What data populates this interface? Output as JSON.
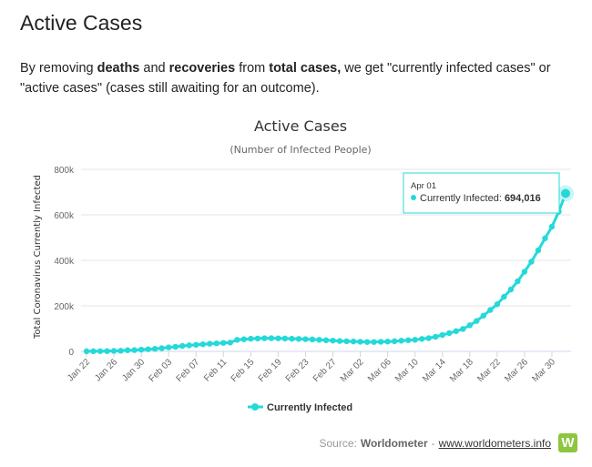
{
  "page": {
    "title": "Active Cases",
    "intro": {
      "p1": "By removing ",
      "b1": "deaths",
      "p2": " and ",
      "b2": "recoveries",
      "p3": " from ",
      "b3": "total cases,",
      "p4": " we get \"currently infected cases\" or \"active cases\" (cases still awaiting for an outcome)."
    }
  },
  "tooltip": {
    "date": "Apr 01",
    "label": "Currently Infected: ",
    "value": "694,016"
  },
  "source": {
    "label": "Source:",
    "name": "Worldometer",
    "separator": "-",
    "link": "www.worldometers.info",
    "logo_letter": "W"
  },
  "colors": {
    "series": "#25d9d9",
    "tooltip_border": "#25d9d9"
  },
  "chart_data": {
    "type": "line",
    "title": "Active Cases",
    "subtitle": "(Number of Infected People)",
    "ylabel": "Total Coronavirus Currently Infected",
    "xlabel": "",
    "ylim": [
      0,
      800000
    ],
    "yticks": [
      0,
      200000,
      400000,
      600000,
      800000
    ],
    "ytick_labels": [
      "0",
      "200k",
      "400k",
      "600k",
      "800k"
    ],
    "grid": true,
    "legend_position": "bottom-center",
    "x_tick_labels": [
      "Jan 22",
      "Jan 26",
      "Jan 30",
      "Feb 03",
      "Feb 07",
      "Feb 11",
      "Feb 15",
      "Feb 19",
      "Feb 23",
      "Feb 27",
      "Mar 02",
      "Mar 06",
      "Mar 10",
      "Mar 14",
      "Mar 18",
      "Mar 22",
      "Mar 26",
      "Mar 30"
    ],
    "x": [
      "Jan 22",
      "Jan 23",
      "Jan 24",
      "Jan 25",
      "Jan 26",
      "Jan 27",
      "Jan 28",
      "Jan 29",
      "Jan 30",
      "Jan 31",
      "Feb 01",
      "Feb 02",
      "Feb 03",
      "Feb 04",
      "Feb 05",
      "Feb 06",
      "Feb 07",
      "Feb 08",
      "Feb 09",
      "Feb 10",
      "Feb 11",
      "Feb 12",
      "Feb 13",
      "Feb 14",
      "Feb 15",
      "Feb 16",
      "Feb 17",
      "Feb 18",
      "Feb 19",
      "Feb 20",
      "Feb 21",
      "Feb 22",
      "Feb 23",
      "Feb 24",
      "Feb 25",
      "Feb 26",
      "Feb 27",
      "Feb 28",
      "Feb 29",
      "Mar 01",
      "Mar 02",
      "Mar 03",
      "Mar 04",
      "Mar 05",
      "Mar 06",
      "Mar 07",
      "Mar 08",
      "Mar 09",
      "Mar 10",
      "Mar 11",
      "Mar 12",
      "Mar 13",
      "Mar 14",
      "Mar 15",
      "Mar 16",
      "Mar 17",
      "Mar 18",
      "Mar 19",
      "Mar 20",
      "Mar 21",
      "Mar 22",
      "Mar 23",
      "Mar 24",
      "Mar 25",
      "Mar 26",
      "Mar 27",
      "Mar 28",
      "Mar 29",
      "Mar 30",
      "Mar 31",
      "Apr 01"
    ],
    "series": [
      {
        "name": "Currently Infected",
        "values": [
          500,
          600,
          900,
          1300,
          2000,
          2700,
          5000,
          5800,
          7700,
          9400,
          11300,
          14000,
          17500,
          20300,
          24000,
          26500,
          29000,
          31300,
          33700,
          35200,
          37300,
          38800,
          50900,
          53300,
          55600,
          56700,
          57800,
          58000,
          57400,
          56600,
          55600,
          54900,
          53800,
          52500,
          50900,
          49000,
          47400,
          45600,
          44500,
          43500,
          42400,
          41200,
          41300,
          42300,
          43200,
          44500,
          47000,
          49000,
          51000,
          54900,
          58100,
          64200,
          72000,
          80400,
          89000,
          98500,
          114700,
          133800,
          157000,
          182000,
          207000,
          240000,
          272000,
          308000,
          350000,
          394000,
          444000,
          497000,
          548000,
          614000,
          694016
        ]
      }
    ]
  }
}
